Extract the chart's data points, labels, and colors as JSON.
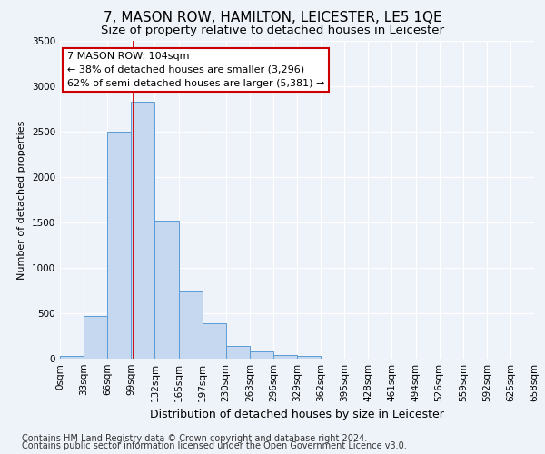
{
  "title": "7, MASON ROW, HAMILTON, LEICESTER, LE5 1QE",
  "subtitle": "Size of property relative to detached houses in Leicester",
  "xlabel": "Distribution of detached houses by size in Leicester",
  "ylabel": "Number of detached properties",
  "bar_color": "#c5d8f0",
  "bar_edge_color": "#5b9bd5",
  "bin_labels": [
    "0sqm",
    "33sqm",
    "66sqm",
    "99sqm",
    "132sqm",
    "165sqm",
    "197sqm",
    "230sqm",
    "263sqm",
    "296sqm",
    "329sqm",
    "362sqm",
    "395sqm",
    "428sqm",
    "461sqm",
    "494sqm",
    "526sqm",
    "559sqm",
    "592sqm",
    "625sqm",
    "658sqm"
  ],
  "bar_heights": [
    30,
    470,
    2500,
    2830,
    1520,
    740,
    390,
    145,
    80,
    45,
    30,
    0,
    0,
    0,
    0,
    0,
    0,
    0,
    0,
    0
  ],
  "vline_position": 3.09,
  "vline_color": "#cc0000",
  "ylim": [
    0,
    3500
  ],
  "yticks": [
    0,
    500,
    1000,
    1500,
    2000,
    2500,
    3000,
    3500
  ],
  "annotation_title": "7 MASON ROW: 104sqm",
  "annotation_line1": "← 38% of detached houses are smaller (3,296)",
  "annotation_line2": "62% of semi-detached houses are larger (5,381) →",
  "annotation_box_color": "#ffffff",
  "annotation_box_edge": "#cc0000",
  "footnote1": "Contains HM Land Registry data © Crown copyright and database right 2024.",
  "footnote2": "Contains public sector information licensed under the Open Government Licence v3.0.",
  "background_color": "#eef2f9",
  "grid_color": "#ffffff",
  "title_fontsize": 11,
  "subtitle_fontsize": 9.5,
  "xlabel_fontsize": 9,
  "ylabel_fontsize": 8,
  "tick_fontsize": 7.5,
  "footnote_fontsize": 7
}
